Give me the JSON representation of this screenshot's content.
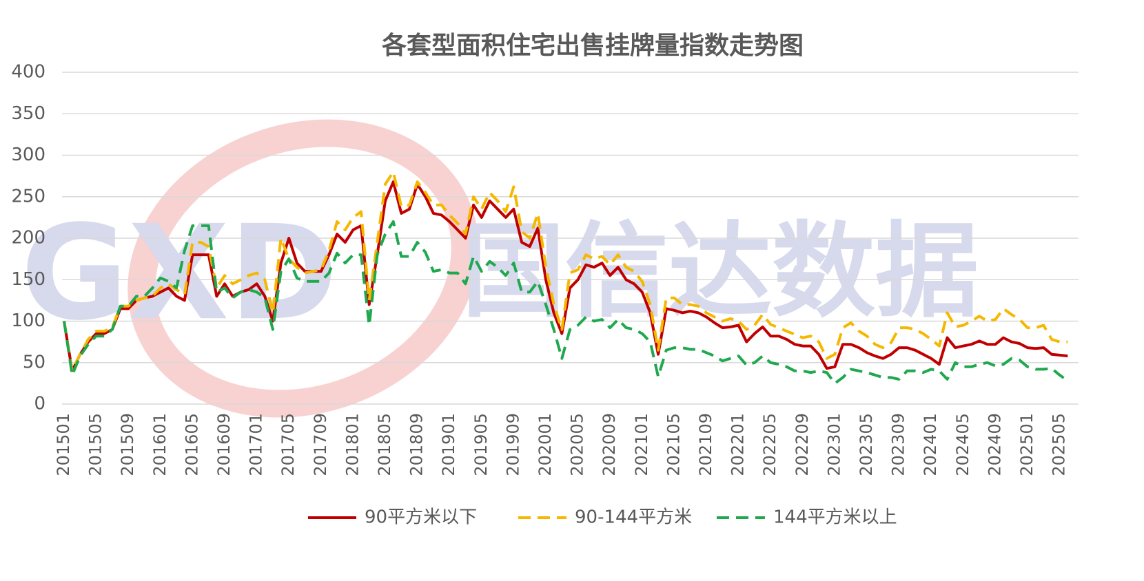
{
  "chart_data": {
    "type": "line",
    "title": "各套型面积住宅出售挂牌量指数走势图",
    "watermark": {
      "logo": "GXD",
      "text": "国信达数据"
    },
    "categories": [
      "201501",
      null,
      null,
      null,
      "201505",
      null,
      null,
      null,
      "201509",
      null,
      null,
      null,
      "201601",
      null,
      null,
      null,
      "201605",
      null,
      null,
      null,
      "201609",
      null,
      null,
      null,
      "201701",
      null,
      null,
      null,
      "201705",
      null,
      null,
      null,
      "201709",
      null,
      null,
      null,
      "201801",
      null,
      null,
      null,
      "201805",
      null,
      null,
      null,
      "201809",
      null,
      null,
      null,
      "201901",
      null,
      null,
      null,
      "201905",
      null,
      null,
      null,
      "201909",
      null,
      null,
      null,
      "202001",
      null,
      null,
      null,
      "202005",
      null,
      null,
      null,
      "202009",
      null,
      null,
      null,
      "202101",
      null,
      null,
      null,
      "202105",
      null,
      null,
      null,
      "202109",
      null,
      null,
      null,
      "202201",
      null,
      null,
      null,
      "202205",
      null,
      null,
      null,
      "202209",
      null,
      null,
      null,
      "202301",
      null,
      null,
      null,
      "202305",
      null,
      null,
      null,
      "202309",
      null,
      null,
      null,
      "202401",
      null,
      null,
      null,
      "202405",
      null,
      null,
      null,
      "202409",
      null,
      null,
      null,
      "202501",
      null,
      null,
      null,
      "202505",
      null
    ],
    "series": [
      {
        "name": "90平方米以下",
        "color": "#c00000",
        "dashed": false,
        "values": [
          100,
          40,
          60,
          75,
          85,
          85,
          90,
          115,
          115,
          125,
          128,
          130,
          135,
          140,
          130,
          125,
          180,
          180,
          180,
          130,
          145,
          130,
          135,
          138,
          145,
          130,
          100,
          170,
          200,
          170,
          160,
          160,
          160,
          180,
          205,
          195,
          210,
          215,
          120,
          180,
          245,
          268,
          230,
          235,
          265,
          250,
          230,
          228,
          220,
          210,
          200,
          240,
          225,
          245,
          235,
          225,
          235,
          195,
          190,
          212,
          150,
          110,
          85,
          140,
          150,
          168,
          165,
          170,
          155,
          165,
          150,
          145,
          135,
          110,
          60,
          115,
          113,
          110,
          112,
          110,
          105,
          98,
          92,
          93,
          95,
          75,
          85,
          93,
          82,
          82,
          78,
          72,
          70,
          70,
          60,
          43,
          45,
          72,
          72,
          68,
          62,
          58,
          55,
          60,
          68,
          68,
          65,
          60,
          55,
          48,
          80,
          68,
          70,
          72,
          76,
          72,
          72,
          80,
          75,
          73,
          68,
          67,
          68,
          60,
          59,
          58
        ]
      },
      {
        "name": "90-144平方米",
        "color": "#f5b800",
        "dashed": true,
        "values": [
          100,
          40,
          60,
          78,
          88,
          88,
          92,
          118,
          118,
          125,
          128,
          130,
          140,
          145,
          138,
          132,
          195,
          195,
          190,
          140,
          155,
          145,
          150,
          155,
          158,
          150,
          110,
          200,
          175,
          165,
          158,
          160,
          162,
          185,
          220,
          210,
          225,
          232,
          125,
          195,
          265,
          280,
          238,
          240,
          268,
          255,
          240,
          240,
          228,
          218,
          205,
          250,
          235,
          255,
          245,
          232,
          262,
          208,
          200,
          230,
          165,
          120,
          90,
          158,
          162,
          180,
          175,
          178,
          168,
          180,
          165,
          160,
          148,
          120,
          65,
          128,
          128,
          120,
          120,
          118,
          110,
          105,
          100,
          103,
          100,
          90,
          95,
          108,
          96,
          92,
          88,
          84,
          80,
          82,
          75,
          55,
          60,
          92,
          98,
          88,
          82,
          72,
          68,
          74,
          92,
          92,
          90,
          85,
          78,
          70,
          110,
          93,
          95,
          100,
          106,
          100,
          102,
          115,
          108,
          102,
          92,
          92,
          95,
          78,
          75,
          75
        ]
      },
      {
        "name": "144平方米以上",
        "color": "#1fa84e",
        "dashed": true,
        "values": [
          100,
          35,
          58,
          72,
          82,
          82,
          90,
          118,
          118,
          130,
          130,
          140,
          152,
          148,
          140,
          185,
          215,
          215,
          215,
          135,
          140,
          128,
          135,
          138,
          135,
          128,
          90,
          160,
          175,
          152,
          148,
          148,
          148,
          158,
          182,
          170,
          180,
          180,
          95,
          180,
          205,
          220,
          178,
          178,
          195,
          183,
          160,
          162,
          158,
          158,
          145,
          178,
          160,
          172,
          165,
          155,
          170,
          135,
          135,
          148,
          120,
          90,
          55,
          90,
          95,
          105,
          100,
          102,
          92,
          102,
          92,
          90,
          85,
          75,
          33,
          65,
          68,
          68,
          66,
          66,
          62,
          58,
          52,
          55,
          58,
          47,
          50,
          58,
          50,
          48,
          45,
          40,
          40,
          38,
          40,
          38,
          25,
          32,
          42,
          40,
          38,
          35,
          32,
          32,
          30,
          40,
          40,
          38,
          42,
          40,
          30,
          50,
          45,
          45,
          48,
          50,
          46,
          48,
          55,
          53,
          45,
          42,
          42,
          43,
          35,
          28
        ]
      }
    ],
    "ylim": [
      0,
      400
    ],
    "yticks": [
      0,
      50,
      100,
      150,
      200,
      250,
      300,
      350,
      400
    ],
    "grid": true,
    "legend": "bottom"
  }
}
